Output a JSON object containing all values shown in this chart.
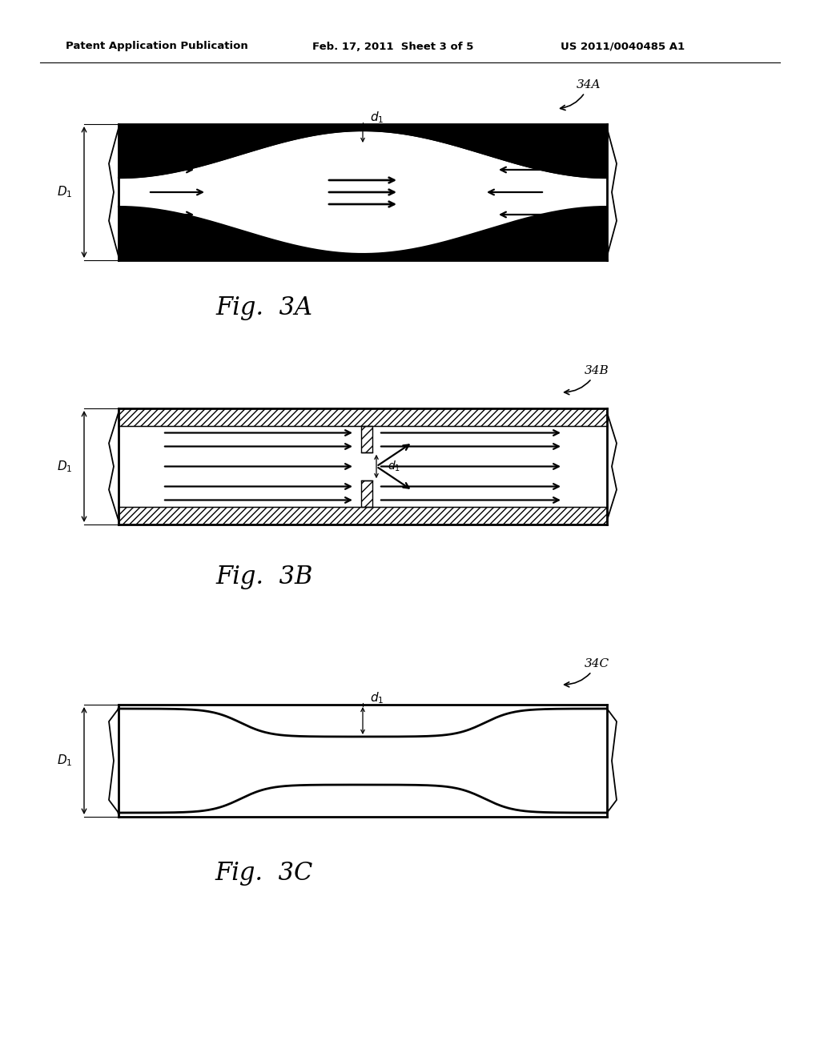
{
  "bg_color": "#ffffff",
  "header_left": "Patent Application Publication",
  "header_center": "Feb. 17, 2011  Sheet 3 of 5",
  "header_right": "US 2011/0040485 A1",
  "fig3A_label": "34A",
  "fig3B_label": "34B",
  "fig3C_label": "34C",
  "caption_3A": "Fig.  3A",
  "caption_3B": "Fig.  3B",
  "caption_3C": "Fig.  3C"
}
